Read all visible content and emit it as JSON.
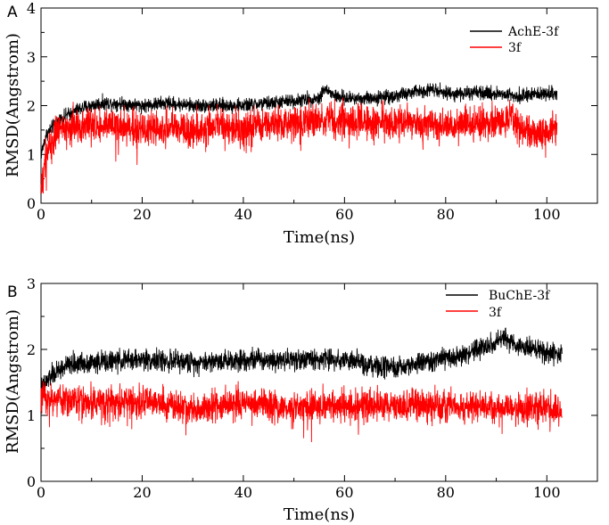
{
  "chart_data": [
    {
      "type": "line",
      "panel": "A",
      "xlabel": "Time(ns)",
      "ylabel": "RMSD(Angstrom)",
      "xlim": [
        0,
        110
      ],
      "ylim": [
        0,
        4
      ],
      "xticks": [
        "0",
        "20",
        "40",
        "60",
        "80",
        "100"
      ],
      "yticks": [
        "0",
        "1",
        "2",
        "3",
        "4"
      ],
      "grid": false,
      "legend_position": "top-right",
      "series": [
        {
          "name": "AchE-3f",
          "color": "#000000",
          "x": [
            0,
            1,
            3,
            5,
            8,
            10,
            12,
            15,
            20,
            25,
            30,
            35,
            40,
            45,
            50,
            55,
            56,
            58,
            60,
            65,
            70,
            75,
            78,
            80,
            85,
            90,
            95,
            100,
            102
          ],
          "y": [
            1.0,
            1.4,
            1.65,
            1.8,
            1.95,
            2.0,
            2.05,
            2.05,
            2.0,
            2.05,
            2.0,
            2.0,
            2.0,
            2.05,
            2.1,
            2.15,
            2.35,
            2.2,
            2.15,
            2.15,
            2.2,
            2.3,
            2.35,
            2.25,
            2.25,
            2.25,
            2.2,
            2.25,
            2.25
          ],
          "noise": 0.07
        },
        {
          "name": "3f",
          "color": "#ff0000",
          "x": [
            0,
            1,
            2,
            4,
            6,
            10,
            15,
            20,
            25,
            30,
            35,
            40,
            45,
            50,
            55,
            60,
            65,
            70,
            75,
            80,
            85,
            90,
            93,
            95,
            100,
            102
          ],
          "y": [
            0.3,
            1.0,
            1.25,
            1.5,
            1.6,
            1.6,
            1.55,
            1.5,
            1.55,
            1.5,
            1.55,
            1.55,
            1.6,
            1.65,
            1.7,
            1.7,
            1.65,
            1.65,
            1.65,
            1.6,
            1.6,
            1.65,
            1.75,
            1.5,
            1.45,
            1.5
          ],
          "noise": 0.18
        }
      ]
    },
    {
      "type": "line",
      "panel": "B",
      "xlabel": "Time(ns)",
      "ylabel": "RMSD(Angstrom)",
      "xlim": [
        0,
        110
      ],
      "ylim": [
        0,
        3
      ],
      "xticks": [
        "0",
        "20",
        "40",
        "60",
        "80",
        "100"
      ],
      "yticks": [
        "0",
        "1",
        "2",
        "3"
      ],
      "grid": false,
      "legend_position": "top-right",
      "series": [
        {
          "name": "BuChE-3f",
          "color": "#000000",
          "x": [
            0,
            2,
            5,
            8,
            10,
            20,
            30,
            40,
            50,
            60,
            65,
            70,
            75,
            80,
            85,
            90,
            92,
            95,
            100,
            103
          ],
          "y": [
            1.4,
            1.6,
            1.75,
            1.8,
            1.8,
            1.85,
            1.8,
            1.85,
            1.85,
            1.85,
            1.75,
            1.7,
            1.8,
            1.85,
            1.95,
            2.1,
            2.15,
            2.05,
            1.95,
            1.9
          ],
          "noise": 0.08
        },
        {
          "name": "3f",
          "color": "#ff0000",
          "x": [
            0,
            2,
            10,
            20,
            30,
            40,
            50,
            60,
            70,
            80,
            90,
            100,
            103
          ],
          "y": [
            1.3,
            1.25,
            1.2,
            1.2,
            1.1,
            1.2,
            1.1,
            1.15,
            1.15,
            1.15,
            1.1,
            1.1,
            1.1
          ],
          "noise": 0.12
        }
      ]
    }
  ]
}
